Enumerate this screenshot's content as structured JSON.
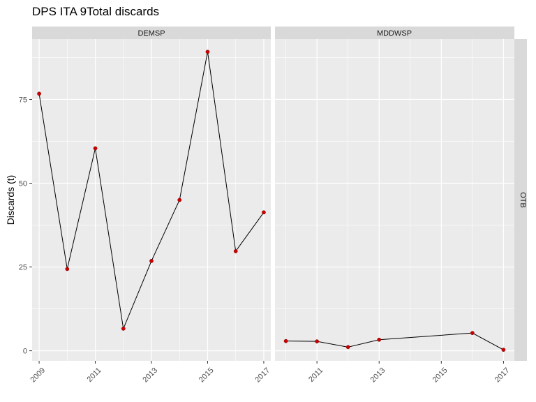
{
  "chart_data": {
    "type": "line",
    "title": "DPS ITA 9Total discards",
    "xlabel": "",
    "ylabel": "Discards (t)",
    "row_strip": "OTB",
    "y_ticks": [
      0,
      25,
      50,
      75
    ],
    "ylim": [
      -3,
      93
    ],
    "grid": true,
    "colors": {
      "panel_bg": "#ebebeb",
      "strip_bg": "#d9d9d9",
      "grid": "#ffffff",
      "line": "#000000",
      "point": "#cc0000"
    },
    "panels": [
      {
        "strip": "DEMSP",
        "xlim": [
          2008.75,
          2017.25
        ],
        "x_ticks": [
          2009,
          2011,
          2013,
          2015,
          2017
        ],
        "x_tick_labels": [
          "2009",
          "2011",
          "2013",
          "2015",
          "2017"
        ],
        "x": [
          2009,
          2010,
          2011,
          2012,
          2013,
          2014,
          2015,
          2016,
          2017
        ],
        "y": [
          76.7,
          24.4,
          60.4,
          6.6,
          26.8,
          45.0,
          89.2,
          29.7,
          41.3
        ]
      },
      {
        "strip": "MDDWSP",
        "xlim": [
          2009.65,
          2017.35
        ],
        "x_ticks": [
          2011,
          2013,
          2015,
          2017
        ],
        "x_tick_labels": [
          "2011",
          "2013",
          "2015",
          "2017"
        ],
        "x": [
          2010,
          2011,
          2012,
          2013,
          2016,
          2017
        ],
        "y": [
          2.9,
          2.8,
          1.1,
          3.3,
          5.3,
          0.3
        ]
      }
    ]
  }
}
